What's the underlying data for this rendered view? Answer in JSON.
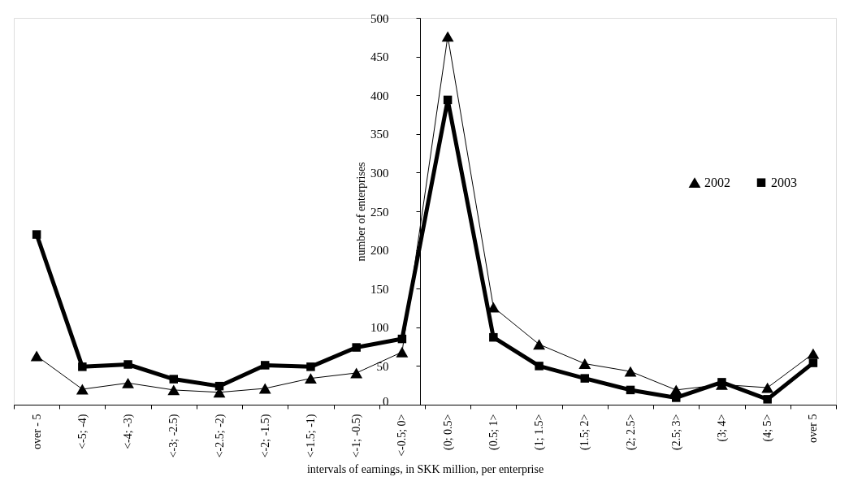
{
  "chart_data": {
    "type": "line",
    "xlabel": "intervals of earnings, in SKK million, per enterprise",
    "ylabel": "number of enterprises",
    "categories": [
      "over - 5",
      "<-5; -4)",
      "<-4; -3)",
      "<-3; -2.5)",
      "<-2.5; -2)",
      "<-2; -1.5)",
      "<-1.5; -1)",
      "<-1; -0.5)",
      "<-0.5; 0>",
      "(0; 0.5>",
      "(0.5; 1>",
      "(1; 1.5>",
      "(1.5; 2>",
      "(2; 2.5>",
      "(2.5; 3>",
      "(3; 4>",
      "(4; 5>",
      "over 5"
    ],
    "series": [
      {
        "name": "2002",
        "color": "#000000",
        "marker": "triangle",
        "values": [
          63,
          20,
          28,
          19,
          16,
          21,
          34,
          41,
          68,
          476,
          126,
          78,
          53,
          43,
          19,
          26,
          22,
          66
        ]
      },
      {
        "name": "2003",
        "color": "#000000",
        "marker": "square",
        "values": [
          220,
          49,
          52,
          33,
          24,
          51,
          49,
          74,
          85,
          394,
          87,
          50,
          34,
          19,
          9,
          29,
          7,
          54
        ]
      }
    ],
    "ylim": [
      0,
      500
    ],
    "yticks": [
      0,
      50,
      100,
      150,
      200,
      250,
      300,
      350,
      400,
      450,
      500
    ],
    "grid": false,
    "legend": "right",
    "line_style": "solid"
  }
}
